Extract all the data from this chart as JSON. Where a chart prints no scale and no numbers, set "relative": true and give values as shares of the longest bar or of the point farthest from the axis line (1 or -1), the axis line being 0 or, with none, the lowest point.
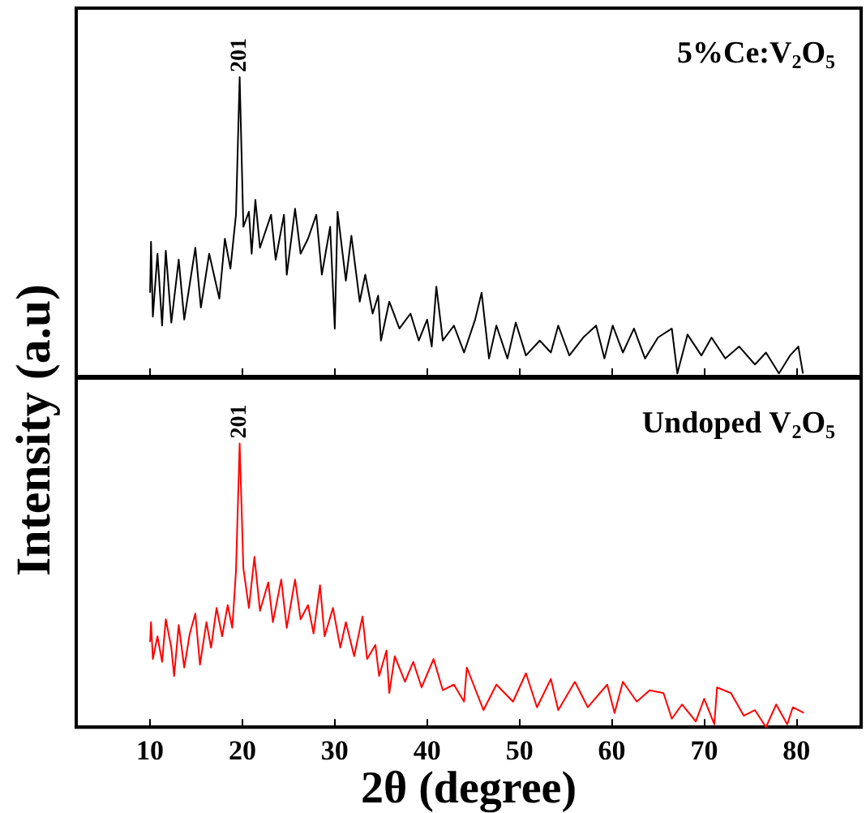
{
  "chart_data": [
    {
      "type": "line",
      "title": "5%Ce:V$_{2}$O$_{5}$",
      "ylabel": "Intensity (a.u)",
      "relative": true,
      "xlim": [
        2,
        87
      ],
      "xticks": [
        10,
        20,
        30,
        40,
        50,
        60,
        70,
        80
      ],
      "tick_labels": false,
      "grid": false,
      "marker": "none",
      "annotations": [
        {
          "text": "201",
          "x": 19.7,
          "y": 1.0
        }
      ],
      "series": [
        {
          "color": "#000000",
          "x": [
            10.0,
            10.1,
            10.3,
            10.8,
            11.3,
            11.7,
            12.3,
            13.1,
            13.7,
            14.9,
            15.5,
            16.4,
            17.5,
            18.1,
            18.7,
            19.3,
            19.7,
            20.1,
            20.7,
            21.0,
            21.4,
            21.9,
            23.1,
            23.6,
            24.5,
            24.8,
            25.7,
            26.3,
            27.1,
            28.0,
            28.6,
            29.5,
            30.0,
            30.3,
            31.2,
            31.8,
            32.7,
            33.3,
            34.1,
            34.7,
            35.0,
            35.9,
            37.0,
            38.2,
            39.1,
            40.0,
            40.5,
            41.0,
            41.7,
            42.9,
            44.0,
            45.2,
            45.9,
            46.7,
            47.5,
            48.7,
            49.6,
            50.7,
            52.2,
            53.4,
            54.2,
            55.4,
            56.9,
            58.3,
            59.2,
            60.1,
            61.2,
            62.4,
            63.6,
            65.0,
            66.5,
            67.1,
            68.2,
            69.7,
            70.8,
            72.3,
            73.8,
            75.5,
            76.7,
            78.1,
            79.3,
            80.2,
            80.7
          ],
          "values": [
            0.28,
            0.45,
            0.2,
            0.41,
            0.17,
            0.42,
            0.18,
            0.39,
            0.19,
            0.43,
            0.23,
            0.41,
            0.26,
            0.46,
            0.36,
            0.54,
            1.0,
            0.5,
            0.55,
            0.41,
            0.59,
            0.43,
            0.54,
            0.39,
            0.54,
            0.34,
            0.56,
            0.41,
            0.46,
            0.54,
            0.34,
            0.5,
            0.16,
            0.55,
            0.32,
            0.47,
            0.25,
            0.34,
            0.21,
            0.27,
            0.12,
            0.25,
            0.16,
            0.21,
            0.12,
            0.19,
            0.1,
            0.3,
            0.12,
            0.17,
            0.08,
            0.19,
            0.28,
            0.06,
            0.17,
            0.06,
            0.18,
            0.07,
            0.12,
            0.08,
            0.17,
            0.07,
            0.13,
            0.17,
            0.06,
            0.17,
            0.08,
            0.16,
            0.06,
            0.13,
            0.16,
            0.01,
            0.14,
            0.07,
            0.13,
            0.06,
            0.1,
            0.04,
            0.08,
            0.01,
            0.07,
            0.1,
            0.01
          ]
        }
      ]
    },
    {
      "type": "line",
      "title": "Undoped V$_{2}$O$_{5}$",
      "xlabel": "2θ (degree)",
      "relative": true,
      "xlim": [
        2,
        87
      ],
      "xticks": [
        10,
        20,
        30,
        40,
        50,
        60,
        70,
        80
      ],
      "tick_labels": "x",
      "grid": false,
      "marker": "none",
      "annotations": [
        {
          "text": "201",
          "x": 19.7,
          "y": 1.0
        }
      ],
      "series": [
        {
          "color": "#ff0000",
          "x": [
            10.0,
            10.1,
            10.3,
            10.8,
            11.3,
            11.7,
            12.3,
            12.6,
            13.1,
            13.7,
            14.3,
            14.9,
            15.4,
            16.1,
            16.6,
            17.2,
            17.8,
            18.4,
            18.9,
            19.3,
            19.7,
            20.1,
            20.7,
            21.3,
            21.9,
            22.8,
            23.3,
            24.2,
            24.8,
            25.7,
            26.3,
            27.1,
            27.7,
            28.4,
            28.9,
            29.8,
            30.6,
            31.2,
            32.1,
            33.0,
            33.5,
            34.4,
            34.8,
            35.6,
            35.9,
            36.5,
            37.6,
            38.5,
            39.4,
            40.7,
            41.7,
            42.9,
            44.0,
            44.3,
            46.1,
            47.5,
            49.3,
            50.7,
            51.9,
            53.4,
            54.2,
            56.0,
            57.4,
            59.5,
            60.3,
            61.2,
            62.7,
            64.1,
            65.6,
            66.5,
            67.6,
            69.1,
            70.0,
            71.1,
            71.4,
            72.9,
            74.3,
            75.5,
            76.7,
            77.8,
            79.0,
            79.6,
            80.8
          ],
          "values": [
            0.3,
            0.37,
            0.24,
            0.32,
            0.23,
            0.38,
            0.28,
            0.18,
            0.36,
            0.21,
            0.33,
            0.4,
            0.22,
            0.37,
            0.28,
            0.42,
            0.32,
            0.43,
            0.35,
            0.55,
            1.0,
            0.56,
            0.42,
            0.6,
            0.41,
            0.51,
            0.37,
            0.52,
            0.35,
            0.52,
            0.38,
            0.43,
            0.33,
            0.5,
            0.32,
            0.42,
            0.28,
            0.37,
            0.25,
            0.39,
            0.24,
            0.29,
            0.18,
            0.27,
            0.12,
            0.25,
            0.16,
            0.23,
            0.14,
            0.24,
            0.13,
            0.15,
            0.09,
            0.21,
            0.06,
            0.15,
            0.09,
            0.19,
            0.07,
            0.17,
            0.06,
            0.16,
            0.07,
            0.15,
            0.05,
            0.16,
            0.09,
            0.13,
            0.12,
            0.03,
            0.08,
            0.02,
            0.1,
            0.01,
            0.14,
            0.12,
            0.04,
            0.06,
            0.0,
            0.08,
            0.01,
            0.07,
            0.05
          ]
        }
      ]
    }
  ]
}
